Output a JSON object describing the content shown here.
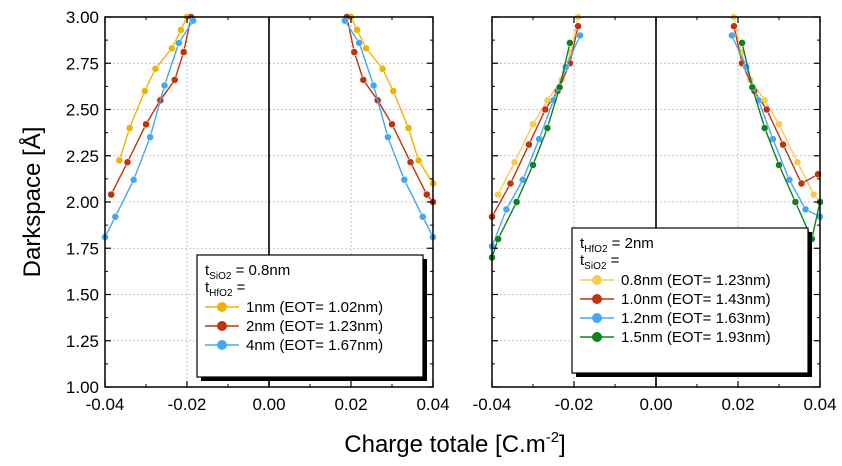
{
  "figure": {
    "ylabel": "Darkspace [Å]",
    "xlabel_main": "Charge totale [C.m",
    "xlabel_sup": "-2",
    "xlabel_end": "]"
  },
  "chart_data": [
    {
      "type": "line",
      "xlim": [
        -0.04,
        0.04
      ],
      "ylim": [
        1.0,
        3.0
      ],
      "x_ticks": [
        "-0.04",
        "-0.02",
        "0.00",
        "0.02",
        "0.04"
      ],
      "y_ticks": [
        "1.00",
        "1.25",
        "1.50",
        "1.75",
        "2.00",
        "2.25",
        "2.50",
        "2.75",
        "3.00"
      ],
      "grid": true,
      "legend_position": "bottom-right",
      "legend_header": [
        {
          "main": "t",
          "sub": "SiO2",
          "rest": " = 0.8nm"
        },
        {
          "main": "t",
          "sub": "HfO2",
          "rest": " ="
        }
      ],
      "series": [
        {
          "name": "1nm  (EOT= 1.02nm)",
          "color": "#f0b400",
          "left": [
            [
              -0.0365,
              2.225
            ],
            [
              -0.034,
              2.4
            ],
            [
              -0.0303,
              2.6
            ],
            [
              -0.0277,
              2.72
            ],
            [
              -0.0237,
              2.83
            ],
            [
              -0.0215,
              2.93
            ],
            [
              -0.02,
              3.0
            ]
          ],
          "right": [
            [
              0.02,
              3.0
            ],
            [
              0.0215,
              2.93
            ],
            [
              0.0237,
              2.83
            ],
            [
              0.0277,
              2.72
            ],
            [
              0.0303,
              2.6
            ],
            [
              0.034,
              2.4
            ],
            [
              0.0365,
              2.225
            ],
            [
              0.04,
              2.1
            ]
          ]
        },
        {
          "name": "2nm  (EOT= 1.23nm)",
          "color": "#c0330f",
          "left": [
            [
              -0.0385,
              2.04
            ],
            [
              -0.0345,
              2.215
            ],
            [
              -0.03,
              2.42
            ],
            [
              -0.0265,
              2.55
            ],
            [
              -0.023,
              2.66
            ],
            [
              -0.0208,
              2.81
            ],
            [
              -0.019,
              3.0
            ]
          ],
          "right": [
            [
              0.019,
              3.0
            ],
            [
              0.0208,
              2.81
            ],
            [
              0.023,
              2.66
            ],
            [
              0.0265,
              2.55
            ],
            [
              0.03,
              2.42
            ],
            [
              0.0345,
              2.215
            ],
            [
              0.0385,
              2.04
            ],
            [
              0.04,
              2.0
            ]
          ]
        },
        {
          "name": "4nm  (EOT= 1.67nm)",
          "color": "#45a7f2",
          "left": [
            [
              -0.04,
              1.81
            ],
            [
              -0.0375,
              1.92
            ],
            [
              -0.033,
              2.12
            ],
            [
              -0.029,
              2.35
            ],
            [
              -0.0255,
              2.63
            ],
            [
              -0.022,
              2.86
            ],
            [
              -0.0185,
              2.98
            ]
          ],
          "right": [
            [
              0.0185,
              2.98
            ],
            [
              0.022,
              2.86
            ],
            [
              0.0255,
              2.63
            ],
            [
              0.029,
              2.35
            ],
            [
              0.033,
              2.12
            ],
            [
              0.0375,
              1.92
            ],
            [
              0.04,
              1.81
            ]
          ]
        }
      ]
    },
    {
      "type": "line",
      "xlim": [
        -0.04,
        0.04
      ],
      "ylim": [
        1.0,
        3.0
      ],
      "x_ticks": [
        "-0.04",
        "-0.02",
        "0.00",
        "0.02",
        "0.04"
      ],
      "y_ticks": [
        "1.00",
        "1.25",
        "1.50",
        "1.75",
        "2.00",
        "2.25",
        "2.50",
        "2.75",
        "3.00"
      ],
      "grid": true,
      "legend_position": "bottom-right",
      "legend_header": [
        {
          "main": "t",
          "sub": "HfO2",
          "rest": " = 2nm"
        },
        {
          "main": "t",
          "sub": "SiO2",
          "rest": " ="
        }
      ],
      "series": [
        {
          "name": "0.8nm  (EOT= 1.23nm)",
          "color": "#f5cc50",
          "left": [
            [
              -0.0385,
              2.04
            ],
            [
              -0.0345,
              2.215
            ],
            [
              -0.03,
              2.42
            ],
            [
              -0.0265,
              2.55
            ],
            [
              -0.023,
              2.66
            ],
            [
              -0.0208,
              2.81
            ],
            [
              -0.019,
              3.0
            ]
          ],
          "right": [
            [
              0.019,
              3.0
            ],
            [
              0.0208,
              2.81
            ],
            [
              0.023,
              2.66
            ],
            [
              0.0265,
              2.55
            ],
            [
              0.03,
              2.42
            ],
            [
              0.0345,
              2.215
            ],
            [
              0.0385,
              2.04
            ],
            [
              0.04,
              2.0
            ]
          ]
        },
        {
          "name": "1.0nm  (EOT= 1.43nm)",
          "color": "#c0330f",
          "left": [
            [
              -0.04,
              1.92
            ],
            [
              -0.0355,
              2.1
            ],
            [
              -0.031,
              2.31
            ],
            [
              -0.027,
              2.5
            ],
            [
              -0.024,
              2.6
            ],
            [
              -0.021,
              2.75
            ],
            [
              -0.019,
              2.95
            ]
          ],
          "right": [
            [
              0.019,
              2.95
            ],
            [
              0.021,
              2.75
            ],
            [
              0.024,
              2.6
            ],
            [
              0.027,
              2.5
            ],
            [
              0.031,
              2.31
            ],
            [
              0.0355,
              2.1
            ],
            [
              0.0395,
              2.15
            ]
          ]
        },
        {
          "name": "1.2nm  (EOT= 1.63nm)",
          "color": "#45a7f2",
          "left": [
            [
              -0.04,
              1.76
            ],
            [
              -0.0365,
              1.96
            ],
            [
              -0.0325,
              2.12
            ],
            [
              -0.0285,
              2.34
            ],
            [
              -0.025,
              2.55
            ],
            [
              -0.022,
              2.73
            ],
            [
              -0.0185,
              2.9
            ]
          ],
          "right": [
            [
              0.0185,
              2.9
            ],
            [
              0.022,
              2.73
            ],
            [
              0.025,
              2.55
            ],
            [
              0.0285,
              2.34
            ],
            [
              0.0325,
              2.12
            ],
            [
              0.0365,
              1.96
            ],
            [
              0.04,
              1.92
            ]
          ]
        },
        {
          "name": "1.5nm  (EOT= 1.93nm)",
          "color": "#12801f",
          "left": [
            [
              -0.04,
              1.7
            ],
            [
              -0.0385,
              1.8
            ],
            [
              -0.034,
              2.0
            ],
            [
              -0.03,
              2.2
            ],
            [
              -0.0265,
              2.4
            ],
            [
              -0.0235,
              2.62
            ],
            [
              -0.021,
              2.86
            ]
          ],
          "right": [
            [
              0.021,
              2.86
            ],
            [
              0.0235,
              2.62
            ],
            [
              0.0265,
              2.4
            ],
            [
              0.03,
              2.2
            ],
            [
              0.034,
              2.0
            ],
            [
              0.038,
              1.8
            ],
            [
              0.04,
              2.0
            ]
          ]
        }
      ]
    }
  ]
}
